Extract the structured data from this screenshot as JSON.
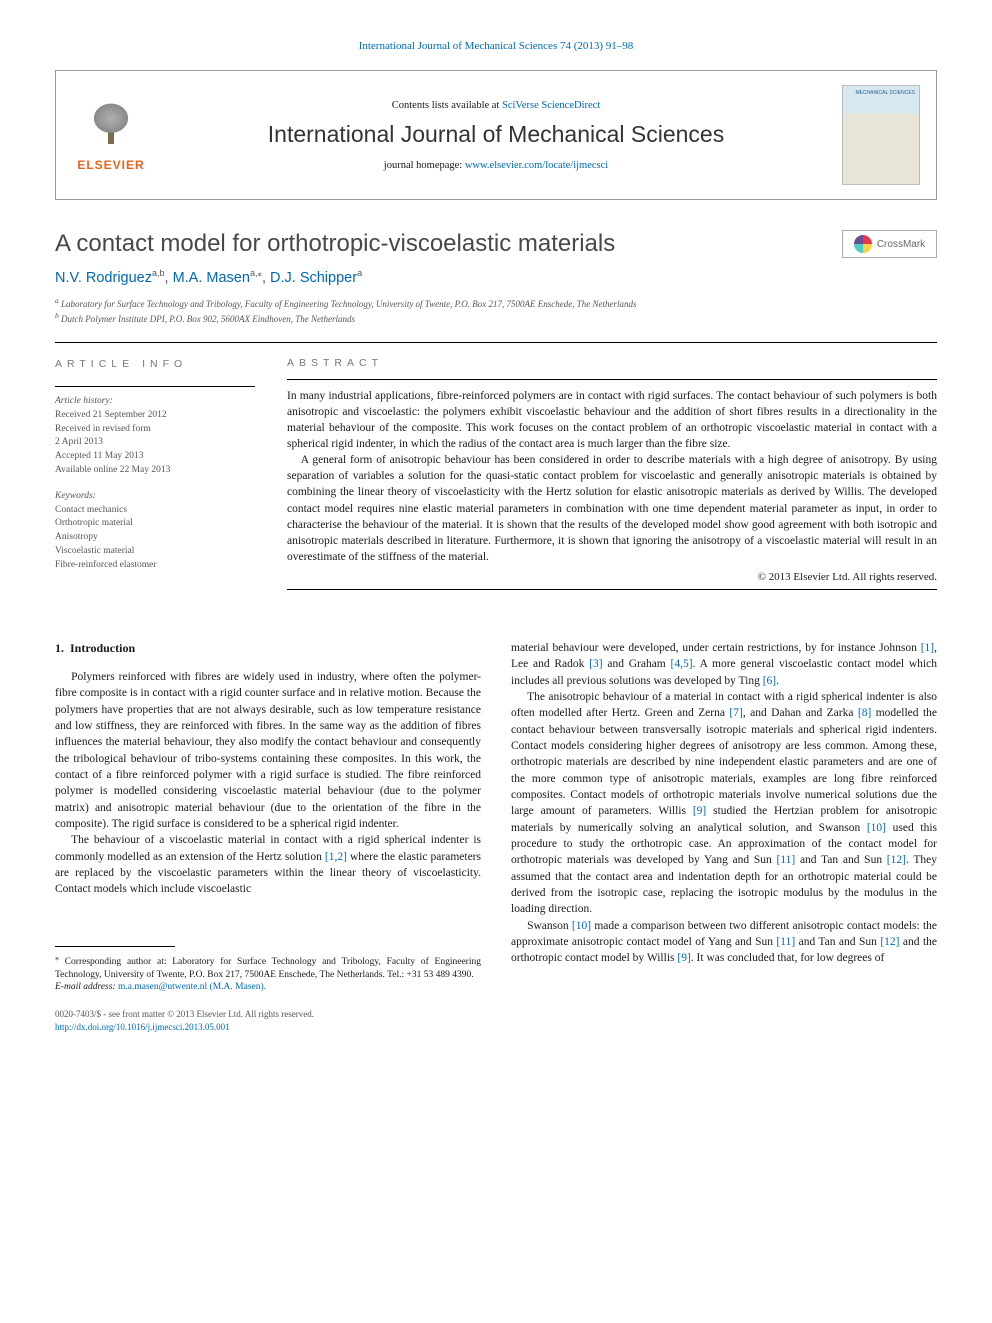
{
  "top_link": {
    "prefix": "",
    "journal": "International Journal of Mechanical Sciences 74 (2013) 91–98"
  },
  "header": {
    "contents_prefix": "Contents lists available at ",
    "contents_link": "SciVerse ScienceDirect",
    "journal_name": "International Journal of Mechanical Sciences",
    "homepage_prefix": "journal homepage: ",
    "homepage_link": "www.elsevier.com/locate/ijmecsci",
    "publisher": "ELSEVIER",
    "cover_text": "MECHANICAL\nSCIENCES"
  },
  "crossmark_label": "CrossMark",
  "title": "A contact model for orthotropic-viscoelastic materials",
  "authors": [
    {
      "name": "N.V. Rodriguez",
      "affil": "a,b",
      "corresponding": false
    },
    {
      "name": "M.A. Masen",
      "affil": "a,",
      "corresponding": true
    },
    {
      "name": "D.J. Schipper",
      "affil": "a",
      "corresponding": false
    }
  ],
  "affiliations": [
    {
      "sup": "a",
      "text": "Laboratory for Surface Technology and Tribology, Faculty of Engineering Technology, University of Twente, P.O. Box 217, 7500AE Enschede, The Netherlands"
    },
    {
      "sup": "b",
      "text": "Dutch Polymer Institute DPI, P.O. Box 902, 5600AX Eindhoven, The Netherlands"
    }
  ],
  "article_info": {
    "heading": "ARTICLE INFO",
    "history_label": "Article history:",
    "history": [
      "Received 21 September 2012",
      "Received in revised form",
      "2 April 2013",
      "Accepted 11 May 2013",
      "Available online 22 May 2013"
    ],
    "keywords_label": "Keywords:",
    "keywords": [
      "Contact mechanics",
      "Orthotropic material",
      "Anisotropy",
      "Viscoelastic material",
      "Fibre-reinforced elastomer"
    ]
  },
  "abstract": {
    "heading": "ABSTRACT",
    "paragraphs": [
      "In many industrial applications, fibre-reinforced polymers are in contact with rigid surfaces. The contact behaviour of such polymers is both anisotropic and viscoelastic: the polymers exhibit viscoelastic behaviour and the addition of short fibres results in a directionality in the material behaviour of the composite. This work focuses on the contact problem of an orthotropic viscoelastic material in contact with a spherical rigid indenter, in which the radius of the contact area is much larger than the fibre size.",
      "A general form of anisotropic behaviour has been considered in order to describe materials with a high degree of anisotropy. By using separation of variables a solution for the quasi-static contact problem for viscoelastic and generally anisotropic materials is obtained by combining the linear theory of viscoelasticity with the Hertz solution for elastic anisotropic materials as derived by Willis. The developed contact model requires nine elastic material parameters in combination with one time dependent material parameter as input, in order to characterise the behaviour of the material. It is shown that the results of the developed model show good agreement with both isotropic and anisotropic materials described in literature. Furthermore, it is shown that ignoring the anisotropy of a viscoelastic material will result in an overestimate of the stiffness of the material."
    ],
    "copyright": "© 2013 Elsevier Ltd. All rights reserved."
  },
  "body": {
    "section_number": "1.",
    "section_title": "Introduction",
    "left_paragraphs": [
      "Polymers reinforced with fibres are widely used in industry, where often the polymer-fibre composite is in contact with a rigid counter surface and in relative motion. Because the polymers have properties that are not always desirable, such as low temperature resistance and low stiffness, they are reinforced with fibres. In the same way as the addition of fibres influences the material behaviour, they also modify the contact behaviour and consequently the tribological behaviour of tribo-systems containing these composites. In this work, the contact of a fibre reinforced polymer with a rigid surface is studied. The fibre reinforced polymer is modelled considering viscoelastic material behaviour (due to the polymer matrix) and anisotropic material behaviour (due to the orientation of the fibre in the composite). The rigid surface is considered to be a spherical rigid indenter.",
      "The behaviour of a viscoelastic material in contact with a rigid spherical indenter is commonly modelled as an extension of the Hertz solution [[1,2]] where the elastic parameters are replaced by the viscoelastic parameters within the linear theory of viscoelasticity. Contact models which include viscoelastic"
    ],
    "right_paragraphs": [
      "material behaviour were developed, under certain restrictions, by for instance Johnson [[1]], Lee and Radok [[3]] and Graham [[4,5]]. A more general viscoelastic contact model which includes all previous solutions was developed by Ting [[6]].",
      "The anisotropic behaviour of a material in contact with a rigid spherical indenter is also often modelled after Hertz. Green and Zerna [[7]], and Dahan and Zarka [[8]] modelled the contact behaviour between transversally isotropic materials and spherical rigid indenters. Contact models considering higher degrees of anisotropy are less common. Among these, orthotropic materials are described by nine independent elastic parameters and are one of the more common type of anisotropic materials, examples are long fibre reinforced composites. Contact models of orthotropic materials involve numerical solutions due the large amount of parameters. Willis [[9]] studied the Hertzian problem for anisotropic materials by numerically solving an analytical solution, and Swanson [[10]] used this procedure to study the orthotropic case. An approximation of the contact model for orthotropic materials was developed by Yang and Sun [[11]] and Tan and Sun [[12]]. They assumed that the contact area and indentation depth for an orthotropic material could be derived from the isotropic case, replacing the isotropic modulus by the modulus in the loading direction.",
      "Swanson [[10]] made a comparison between two different anisotropic contact models: the approximate anisotropic contact model of Yang and Sun [[11]] and Tan and Sun [[12]] and the orthotropic contact model by Willis [[9]]. It was concluded that, for low degrees of"
    ]
  },
  "footnote": {
    "star": "⁎",
    "corr_text": "Corresponding author at: Laboratory for Surface Technology and Tribology, Faculty of Engineering Technology, University of Twente, P.O. Box 217, 7500AE Enschede, The Netherlands. Tel.: +31 53 489 4390.",
    "email_label": "E-mail address:",
    "email": "m.a.masen@utwente.nl (M.A. Masen)."
  },
  "bottom": {
    "issn_line": "0020-7403/$ - see front matter © 2013 Elsevier Ltd. All rights reserved.",
    "doi_prefix": "http://dx.doi.org/",
    "doi": "10.1016/j.ijmecsci.2013.05.001"
  },
  "colors": {
    "link": "#0068b4",
    "elsevier_orange": "#e8641b",
    "text": "#1a1a1a",
    "muted": "#555555",
    "rule": "#000000"
  }
}
